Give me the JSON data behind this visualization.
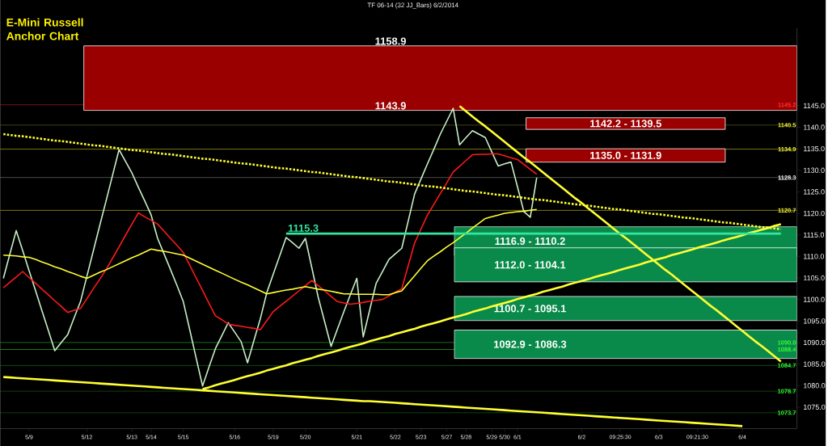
{
  "chart_data": {
    "type": "line",
    "title": "TF 06-14 (32 JJ_Bars)  6/2/2014",
    "subtitle": "E-Mini Russell Anchor Chart",
    "categories": [
      null,
      null,
      null,
      null,
      "5/9",
      null,
      null,
      null,
      null,
      null,
      null,
      null,
      null,
      "5/12",
      null,
      null,
      null,
      null,
      null,
      null,
      "5/13",
      null,
      null,
      "5/14",
      null,
      null,
      null,
      null,
      "5/15",
      null,
      null,
      null,
      null,
      null,
      null,
      null,
      "5/16",
      null,
      null,
      null,
      null,
      null,
      "5/19",
      null,
      null,
      null,
      null,
      "5/20",
      null,
      null,
      null,
      null,
      null,
      null,
      null,
      "5/21",
      null,
      null,
      null,
      null,
      null,
      "5/22",
      null,
      null,
      null,
      "5/23",
      null,
      null,
      null,
      "5/27",
      null,
      null,
      "5/28",
      null,
      null,
      null,
      "5/29",
      null,
      "5/30",
      null,
      "6/1",
      null,
      null,
      null,
      null,
      null,
      null,
      null,
      null,
      null,
      "6/2",
      null,
      null,
      null,
      null,
      null,
      "09:25:30",
      null,
      null,
      null,
      null,
      null,
      "6/3",
      null,
      null,
      null,
      null,
      null,
      "09:21:30",
      null,
      null,
      null,
      null,
      null,
      null,
      "6/4",
      null,
      null,
      null,
      null,
      null,
      null,
      null,
      null
    ],
    "ylim": [
      1070,
      1163
    ],
    "yticks": [
      {
        "value": 1075,
        "label": "1075.0"
      },
      {
        "value": 1080,
        "label": "1080.0"
      },
      {
        "value": 1085,
        "label": "1085.0"
      },
      {
        "value": 1090,
        "label": "1090.0"
      },
      {
        "value": 1095,
        "label": "1095.0"
      },
      {
        "value": 1100,
        "label": "1100.0"
      },
      {
        "value": 1105,
        "label": "1105.0"
      },
      {
        "value": 1110,
        "label": "1110.0"
      },
      {
        "value": 1115,
        "label": "1115.0"
      },
      {
        "value": 1120,
        "label": "1120.0"
      },
      {
        "value": 1125,
        "label": "1125.0"
      },
      {
        "value": 1130,
        "label": "1130.0"
      },
      {
        "value": 1135,
        "label": "1135.0"
      },
      {
        "value": 1140,
        "label": "1140.0"
      },
      {
        "value": 1145,
        "label": "1145.0"
      }
    ],
    "series": [
      {
        "color": "#c8f0c8",
        "values": [
          1104.9,
          1110.5,
          1116.0,
          1111.4,
          1106.7,
          1102.1,
          1097.4,
          1092.8,
          1088.1,
          1090.0,
          1091.8,
          1095.7,
          1099.5,
          1105.4,
          1111.3,
          1117.2,
          1123.0,
          1128.9,
          1134.8,
          1132.1,
          1129.4,
          1126.1,
          1122.9,
          1119.6,
          1114.2,
          1110.6,
          1107.0,
          1103.3,
          1099.5,
          1093.0,
          1086.4,
          1079.9,
          1084.3,
          1088.6,
          1091.6,
          1094.6,
          1092.4,
          1090.2,
          1085.3,
          1090.5,
          1095.6,
          1101.6,
          1105.9,
          1110.1,
          1114.4,
          1113.2,
          1111.9,
          1114.2,
          1107.4,
          1100.5,
          1094.8,
          1089.1,
          1093.2,
          1097.2,
          1101.1,
          1104.9,
          1091.3,
          1097.5,
          1103.7,
          1106.5,
          1109.3,
          1110.6,
          1111.9,
          1118.2,
          1124.5,
          1128.0,
          1131.5,
          1134.9,
          1138.4,
          1141.4,
          1144.4,
          1135.9,
          1137.6,
          1139.2,
          1138.4,
          1137.6,
          1134.3,
          1131.0,
          1131.5,
          1131.9,
          1126.2,
          1120.4,
          1119.1,
          1128.3,
          null,
          null,
          null,
          null,
          null,
          null,
          null,
          null,
          null,
          null,
          null,
          null,
          null,
          null,
          null,
          null,
          null,
          null,
          null,
          null,
          null,
          null,
          null,
          null,
          null,
          null,
          null,
          null,
          null,
          null,
          null,
          null,
          null,
          null,
          null,
          null,
          null,
          null,
          null,
          null
        ]
      },
      {
        "color": "#ff1a1a",
        "values": [
          1102.7,
          1104.0,
          1105.2,
          1106.5,
          1105.1,
          1103.8,
          1102.4,
          1101.1,
          1099.7,
          1098.4,
          1097.0,
          1097.5,
          1097.9,
          1100.2,
          1102.5,
          1104.7,
          1107.0,
          1109.6,
          1112.2,
          1114.9,
          1117.5,
          1120.1,
          1119.2,
          1118.4,
          1117.5,
          1115.9,
          1114.2,
          1112.6,
          1110.9,
          1108.0,
          1105.0,
          1102.1,
          1099.1,
          1096.2,
          1095.3,
          1094.3,
          1094.0,
          1093.8,
          1093.5,
          1093.3,
          1093.0,
          1095.1,
          1097.2,
          1098.4,
          1099.6,
          1100.8,
          1102.0,
          1103.2,
          1104.4,
          1103.2,
          1102.0,
          1100.7,
          1099.5,
          1099.2,
          1098.9,
          1099.1,
          1099.3,
          1099.6,
          1099.8,
          1100.0,
          1100.8,
          1101.7,
          1102.5,
          1107.8,
          1113.1,
          1116.4,
          1119.6,
          1122.1,
          1124.6,
          1127.1,
          1129.6,
          1130.9,
          1132.3,
          1133.6,
          1133.7,
          1133.7,
          1133.8,
          1133.8,
          1133.4,
          1132.9,
          1132.5,
          1131.4,
          1130.2,
          1129.1,
          null,
          null,
          null,
          null,
          null,
          null,
          null,
          null,
          null,
          null,
          null,
          null,
          null,
          null,
          null,
          null,
          null,
          null,
          null,
          null,
          null,
          null,
          null,
          null,
          null,
          null,
          null,
          null,
          null,
          null,
          null,
          null,
          null,
          null,
          null,
          null,
          null,
          null,
          null,
          null
        ]
      },
      {
        "color": "#ffff33",
        "values": [
          1110.3,
          1110.2,
          1110.1,
          1109.9,
          1109.8,
          1109.3,
          1108.7,
          1108.2,
          1107.6,
          1107.1,
          1106.5,
          1106.0,
          1105.4,
          1104.9,
          1105.6,
          1106.3,
          1106.9,
          1107.6,
          1108.3,
          1109.0,
          1109.7,
          1110.3,
          1111.0,
          1111.7,
          1111.4,
          1111.2,
          1110.9,
          1110.6,
          1110.3,
          1109.6,
          1108.9,
          1108.2,
          1107.5,
          1106.8,
          1106.1,
          1105.4,
          1104.7,
          1104.0,
          1103.4,
          1102.7,
          1102.0,
          1101.3,
          1101.6,
          1101.9,
          1102.2,
          1102.4,
          1102.7,
          1103.0,
          1102.7,
          1102.4,
          1102.2,
          1101.9,
          1101.6,
          1101.3,
          1101.3,
          1101.2,
          1101.2,
          1101.2,
          1101.2,
          1101.1,
          1101.1,
          1101.6,
          1102.0,
          1103.8,
          1105.5,
          1107.3,
          1109.0,
          1110.1,
          1111.1,
          1112.2,
          1113.2,
          1114.3,
          1115.4,
          1116.6,
          1117.7,
          1118.8,
          1119.2,
          1119.6,
          1120.0,
          1120.2,
          1120.4,
          1120.5,
          1120.7,
          1120.9,
          null,
          null,
          null,
          null,
          null,
          null,
          null,
          null,
          null,
          null,
          null,
          null,
          null,
          null,
          null,
          null,
          null,
          null,
          null,
          null,
          null,
          null,
          null,
          null,
          null,
          null,
          null,
          null,
          null,
          null,
          null,
          null,
          null,
          null,
          null,
          null,
          null,
          null,
          null,
          null
        ]
      },
      {
        "color": "#ffff33",
        "values": [
          null,
          null,
          null,
          null,
          null,
          null,
          null,
          null,
          null,
          null,
          null,
          null,
          null,
          null,
          null,
          null,
          null,
          null,
          null,
          null,
          null,
          null,
          null,
          null,
          null,
          null,
          null,
          null,
          null,
          null,
          null,
          null,
          null,
          null,
          null,
          null,
          null,
          null,
          null,
          null,
          null,
          null,
          null,
          null,
          null,
          null,
          null,
          null,
          null,
          null,
          null,
          null,
          null,
          null,
          null,
          null,
          null,
          null,
          null,
          null,
          null,
          null,
          null,
          null,
          null,
          null,
          null,
          null,
          null,
          null,
          null,
          1144.9,
          1143.7,
          1142.5,
          1141.3,
          1140.2,
          1139.0,
          1137.8,
          1136.6,
          1135.4,
          1134.2,
          1133.0,
          1131.9,
          1130.7,
          1129.5,
          1128.3,
          1127.1,
          1125.9,
          1124.7,
          1123.5,
          1122.4,
          1121.2,
          1120.0,
          1118.8,
          1117.6,
          1116.4,
          1115.2,
          1114.1,
          1112.9,
          1111.7,
          1110.5,
          1109.3,
          1108.1,
          1106.9,
          1105.8,
          1104.6,
          1103.4,
          1102.2,
          1101.0,
          1099.8,
          1098.6,
          1097.5,
          1096.3,
          1095.1,
          1093.9,
          1092.7,
          1091.5,
          1090.3,
          1089.2,
          1088.0,
          1086.8,
          1085.6,
          null,
          null
        ]
      },
      {
        "color": "#ffff33",
        "values": [
          null,
          null,
          null,
          null,
          null,
          null,
          null,
          null,
          null,
          null,
          null,
          null,
          null,
          null,
          null,
          null,
          null,
          null,
          null,
          null,
          null,
          null,
          null,
          null,
          null,
          null,
          null,
          null,
          null,
          null,
          null,
          1079.2,
          1079.6,
          1080.1,
          1080.5,
          1080.9,
          1081.3,
          1081.8,
          1082.2,
          1082.6,
          1083.0,
          1083.5,
          1083.9,
          1084.3,
          1084.7,
          1085.2,
          1085.6,
          1086.0,
          1086.4,
          1086.9,
          1087.3,
          1087.7,
          1088.1,
          1088.6,
          1089.0,
          1089.4,
          1089.8,
          1090.3,
          1090.7,
          1091.1,
          1091.5,
          1092.0,
          1092.4,
          1092.8,
          1093.2,
          1093.7,
          1094.1,
          1094.5,
          1094.9,
          1095.4,
          1095.8,
          1096.2,
          1096.6,
          1097.1,
          1097.5,
          1097.9,
          1098.4,
          1098.8,
          1099.2,
          1099.6,
          1100.1,
          1100.5,
          1100.9,
          1101.3,
          1101.8,
          1102.2,
          1102.6,
          1103.0,
          1103.5,
          1103.9,
          1104.3,
          1104.7,
          1105.2,
          1105.6,
          1106.0,
          1106.4,
          1106.9,
          1107.3,
          1107.7,
          1108.1,
          1108.6,
          1109.0,
          1109.4,
          1109.8,
          1110.3,
          1110.7,
          1111.1,
          1111.5,
          1112.0,
          1112.4,
          1112.8,
          1113.2,
          1113.7,
          1114.1,
          1114.5,
          1114.9,
          1115.4,
          1115.8,
          1116.2,
          1116.6,
          1117.1,
          1117.5,
          null,
          null
        ]
      },
      {
        "color": "#ffff33",
        "values": [
          1082.0,
          1081.9,
          1081.8,
          1081.7,
          1081.6,
          1081.5,
          1081.4,
          1081.3,
          1081.2,
          1081.1,
          1081.0,
          1080.9,
          1080.8,
          1080.7,
          1080.6,
          1080.5,
          1080.4,
          1080.3,
          1080.2,
          1080.1,
          1080.0,
          1079.9,
          1079.8,
          1079.7,
          1079.6,
          1079.5,
          1079.4,
          1079.3,
          1079.2,
          1079.1,
          1079.0,
          1078.9,
          1078.8,
          1078.7,
          1078.6,
          1078.5,
          1078.4,
          1078.3,
          1078.2,
          1078.1,
          1078.0,
          1077.9,
          1077.8,
          1077.7,
          1077.6,
          1077.5,
          1077.4,
          1077.3,
          1077.2,
          1077.1,
          1077.0,
          1076.9,
          1076.8,
          1076.7,
          1076.6,
          1076.5,
          1076.4,
          1076.4,
          1076.3,
          1076.2,
          1076.1,
          1076.0,
          1075.9,
          1075.8,
          1075.7,
          1075.6,
          1075.5,
          1075.4,
          1075.3,
          1075.2,
          1075.1,
          1075.0,
          1074.9,
          1074.8,
          1074.7,
          1074.6,
          1074.5,
          1074.4,
          1074.3,
          1074.2,
          1074.1,
          1074.0,
          1073.9,
          1073.8,
          1073.7,
          1073.6,
          1073.5,
          1073.4,
          1073.3,
          1073.2,
          1073.1,
          1073.0,
          1072.9,
          1072.8,
          1072.7,
          1072.6,
          1072.5,
          1072.4,
          1072.3,
          1072.2,
          1072.1,
          1072.0,
          1071.9,
          1071.8,
          1071.7,
          1071.6,
          1071.5,
          1071.4,
          1071.3,
          1071.2,
          1071.1,
          1071.0,
          1070.9,
          1070.8,
          1070.7,
          1070.6,
          null,
          null,
          null,
          null,
          null,
          null,
          null,
          null
        ]
      },
      {
        "color": "#ffff33",
        "line_style": "dotted",
        "values": [
          1138.4,
          1138.2,
          1138.0,
          1137.9,
          1137.7,
          1137.5,
          1137.3,
          1137.1,
          1136.9,
          1136.8,
          1136.6,
          1136.4,
          1136.2,
          1136.0,
          1135.8,
          1135.7,
          1135.5,
          1135.3,
          1135.1,
          1134.9,
          1134.7,
          1134.6,
          1134.4,
          1134.2,
          1134.0,
          1133.8,
          1133.7,
          1133.5,
          1133.3,
          1133.1,
          1132.9,
          1132.7,
          1132.6,
          1132.4,
          1132.2,
          1132.0,
          1131.8,
          1131.6,
          1131.5,
          1131.3,
          1131.1,
          1130.9,
          1130.7,
          1130.5,
          1130.4,
          1130.2,
          1130.0,
          1129.8,
          1129.6,
          1129.5,
          1129.3,
          1129.1,
          1128.9,
          1128.7,
          1128.5,
          1128.4,
          1128.2,
          1128.0,
          1127.8,
          1127.6,
          1127.4,
          1127.3,
          1127.1,
          1126.9,
          1126.7,
          1126.5,
          1126.3,
          1126.2,
          1126.0,
          1125.8,
          1125.6,
          1125.4,
          1125.2,
          1125.1,
          1124.9,
          1124.7,
          1124.5,
          1124.3,
          1124.2,
          1124.0,
          1123.8,
          1123.6,
          1123.4,
          1123.2,
          1123.1,
          1122.9,
          1122.7,
          1122.5,
          1122.3,
          1122.1,
          1122.0,
          1121.8,
          1121.6,
          1121.4,
          1121.2,
          1121.0,
          1120.9,
          1120.7,
          1120.5,
          1120.3,
          1120.1,
          1119.9,
          1119.8,
          1119.6,
          1119.4,
          1119.2,
          1119.0,
          1118.9,
          1118.7,
          1118.5,
          1118.3,
          1118.1,
          1117.9,
          1117.8,
          1117.6,
          1117.4,
          1117.2,
          1117.0,
          1116.8,
          1116.7,
          1116.5,
          1116.3,
          null,
          null
        ]
      },
      {
        "name": "1115.3",
        "color": "#33e6a0",
        "values": [
          null,
          null,
          null,
          null,
          null,
          null,
          null,
          null,
          null,
          null,
          null,
          null,
          null,
          null,
          null,
          null,
          null,
          null,
          null,
          null,
          null,
          null,
          null,
          null,
          null,
          null,
          null,
          null,
          null,
          null,
          null,
          null,
          null,
          null,
          null,
          null,
          null,
          null,
          null,
          null,
          null,
          null,
          null,
          null,
          1115.3,
          1115.3,
          1115.3,
          1115.3,
          1115.3,
          1115.3,
          1115.3,
          1115.3,
          1115.3,
          1115.3,
          1115.3,
          1115.3,
          1115.3,
          1115.3,
          1115.3,
          1115.3,
          1115.3,
          1115.3,
          1115.3,
          1115.3,
          1115.3,
          1115.3,
          1115.3,
          1115.3,
          1115.3,
          1115.3,
          1115.3,
          1115.3,
          1115.3,
          1115.3,
          1115.3,
          1115.3,
          1115.3,
          1115.3,
          1115.3,
          1115.3,
          1115.3,
          1115.3,
          1115.3,
          1115.3,
          1115.3,
          1115.3,
          1115.3,
          1115.3,
          1115.3,
          1115.3,
          1115.3,
          1115.3,
          1115.3,
          1115.3,
          1115.3,
          1115.3,
          1115.3,
          1115.3,
          1115.3,
          1115.3,
          1115.3,
          1115.3,
          1115.3,
          1115.3,
          1115.3,
          1115.3,
          1115.3,
          1115.3,
          1115.3,
          1115.3,
          1115.3,
          1115.3,
          1115.3,
          1115.3,
          1115.3,
          1115.3,
          1115.3,
          1115.3,
          1115.3,
          1115.3,
          1115.3,
          1115.3,
          null,
          null
        ]
      }
    ],
    "bands": [
      {
        "axis": "y",
        "from": 1143.9,
        "to": 1158.9,
        "color": "#9b0000"
      },
      {
        "axis": "y",
        "from": 1139.5,
        "to": 1142.2,
        "label": "1142.2 - 1139.5",
        "color": "#9b0000"
      },
      {
        "axis": "y",
        "from": 1131.9,
        "to": 1135.0,
        "label": "1135.0 - 1131.9",
        "color": "#9b0000"
      },
      {
        "axis": "y",
        "from": 1110.2,
        "to": 1116.9,
        "label": "1116.9 - 1110.2",
        "color": "#0a8a4a"
      },
      {
        "axis": "y",
        "from": 1104.1,
        "to": 1112.0,
        "label": "1112.0 - 1104.1",
        "color": "#0a8a4a"
      },
      {
        "axis": "y",
        "from": 1095.1,
        "to": 1100.7,
        "label": "1100.7 - 1095.1",
        "color": "#0a8a4a"
      },
      {
        "axis": "y",
        "from": 1086.3,
        "to": 1092.9,
        "label": "1092.9 - 1086.3",
        "color": "#0a8a4a"
      }
    ],
    "ref_lines": [
      {
        "axis": "y",
        "value": 1145.2,
        "label": "1145.2",
        "color": "#ff3333"
      },
      {
        "axis": "y",
        "value": 1140.5,
        "label": "1140.5",
        "color": "#ffff33"
      },
      {
        "axis": "y",
        "value": 1134.9,
        "label": "1134.9",
        "color": "#ffff33"
      },
      {
        "axis": "y",
        "value": 1128.3,
        "label": "1128.3",
        "color": "#ffffff"
      },
      {
        "axis": "y",
        "value": 1120.7,
        "label": "1120.7",
        "color": "#ffff33"
      },
      {
        "axis": "y",
        "value": 1090.0,
        "label": "1090.0",
        "color": "#33ff33"
      },
      {
        "axis": "y",
        "value": 1088.4,
        "label": "1088.4",
        "color": "#33ff33"
      },
      {
        "axis": "y",
        "value": 1084.7,
        "label": "1084.7",
        "color": "#33ff33"
      },
      {
        "axis": "y",
        "value": 1078.7,
        "label": "1078.7",
        "color": "#33ff33"
      },
      {
        "axis": "y",
        "value": 1073.7,
        "label": "1073.7",
        "color": "#33ff33"
      }
    ],
    "annotations": [
      {
        "text": "1158.9",
        "y": 1158.9
      },
      {
        "text": "1143.9",
        "y": 1143.9
      }
    ]
  }
}
